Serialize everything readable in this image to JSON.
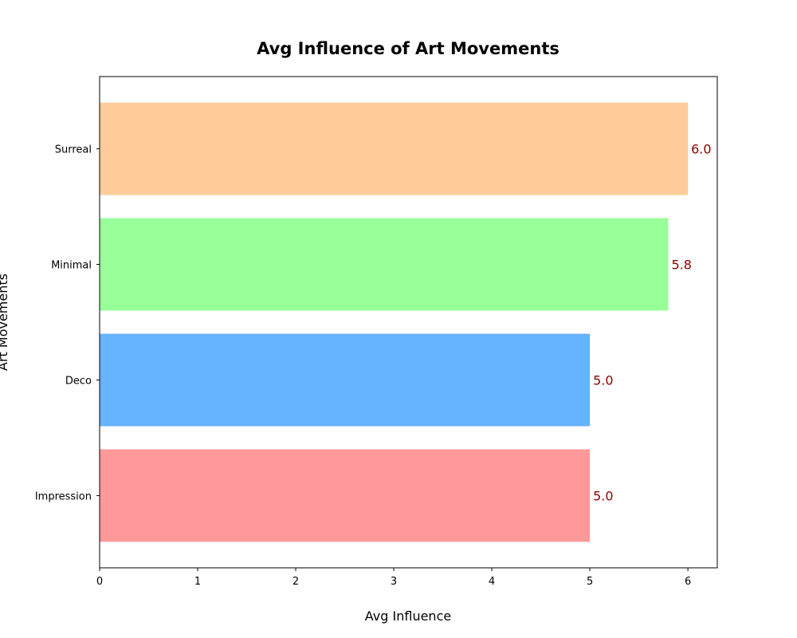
{
  "chart_data": {
    "type": "bar",
    "orientation": "horizontal",
    "title": "Avg Influence of Art Movements",
    "xlabel": "Avg Influence",
    "ylabel": "Art Movements",
    "categories": [
      "Impression",
      "Deco",
      "Minimal",
      "Surreal"
    ],
    "values": [
      5.0,
      5.0,
      5.8,
      6.0
    ],
    "data_labels": [
      "5.0",
      "5.0",
      "5.8",
      "6.0"
    ],
    "colors": [
      "#ff9999",
      "#66b3ff",
      "#99ff99",
      "#ffcc99"
    ],
    "label_color": "#8b0000",
    "xlim": [
      0,
      6.3
    ],
    "xticks": [
      0,
      1,
      2,
      3,
      4,
      5,
      6
    ],
    "grid": false,
    "legend": "none"
  }
}
